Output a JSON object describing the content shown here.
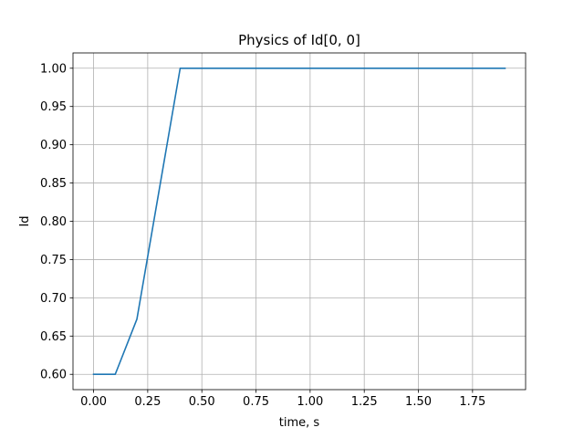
{
  "chart_data": {
    "type": "line",
    "title": "Physics of Id[0, 0]",
    "xlabel": "time, s",
    "ylabel": "Id",
    "xlim": [
      -0.095,
      1.995
    ],
    "ylim": [
      0.58,
      1.02
    ],
    "grid": true,
    "x_ticks": [
      0.0,
      0.25,
      0.5,
      0.75,
      1.0,
      1.25,
      1.5,
      1.75
    ],
    "x_tick_labels": [
      "0.00",
      "0.25",
      "0.50",
      "0.75",
      "1.00",
      "1.25",
      "1.50",
      "1.75"
    ],
    "y_ticks": [
      0.6,
      0.65,
      0.7,
      0.75,
      0.8,
      0.85,
      0.9,
      0.95,
      1.0
    ],
    "y_tick_labels": [
      "0.60",
      "0.65",
      "0.70",
      "0.75",
      "0.80",
      "0.85",
      "0.90",
      "0.95",
      "1.00"
    ],
    "series": [
      {
        "color": "#1f77b4",
        "x": [
          0.0,
          0.1,
          0.2,
          0.3,
          0.4,
          0.5,
          0.6,
          0.7,
          0.8,
          0.9,
          1.0,
          1.1,
          1.2,
          1.3,
          1.4,
          1.5,
          1.6,
          1.7,
          1.8,
          1.9
        ],
        "y": [
          0.6,
          0.6,
          0.672,
          0.836,
          1.0,
          1.0,
          1.0,
          1.0,
          1.0,
          1.0,
          1.0,
          1.0,
          1.0,
          1.0,
          1.0,
          1.0,
          1.0,
          1.0,
          1.0,
          1.0
        ]
      }
    ]
  }
}
